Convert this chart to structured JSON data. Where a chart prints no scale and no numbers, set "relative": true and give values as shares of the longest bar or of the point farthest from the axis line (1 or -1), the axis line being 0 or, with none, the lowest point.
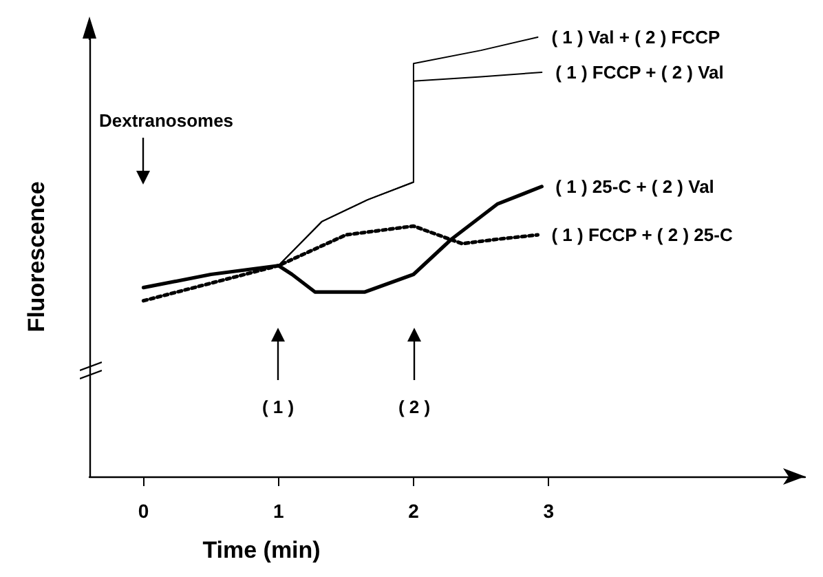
{
  "chart_data": {
    "type": "line",
    "relative": true,
    "xlabel": "Time (min)",
    "ylabel": "Fluorescence",
    "xlim": [
      -0.4,
      4.9
    ],
    "xticks": [
      0,
      1,
      2,
      3
    ],
    "grid": false,
    "legend": false,
    "marker": "none",
    "series": [
      {
        "name": "( 1 ) Val + ( 2 ) FCCP",
        "color": "#000000",
        "x": [
          0,
          0.5,
          1,
          1.32,
          1.66,
          2,
          2,
          2.5,
          2.92
        ],
        "values": [
          0.43,
          0.46,
          0.48,
          0.58,
          0.63,
          0.67,
          0.94,
          0.97,
          1.0
        ]
      },
      {
        "name": "( 1 ) FCCP + ( 2 ) Val",
        "color": "#000000",
        "x": [
          0,
          0.5,
          1,
          1.32,
          1.66,
          2,
          2,
          2.5,
          2.95
        ],
        "values": [
          0.43,
          0.46,
          0.48,
          0.58,
          0.63,
          0.67,
          0.9,
          0.91,
          0.92
        ]
      },
      {
        "name": "( 1 ) 25-C + ( 2 ) Val",
        "color": "#000000",
        "x": [
          0,
          0.5,
          1,
          1.1,
          1.27,
          1.64,
          2,
          2.28,
          2.62,
          2.95
        ],
        "values": [
          0.43,
          0.46,
          0.48,
          0.46,
          0.42,
          0.42,
          0.46,
          0.54,
          0.62,
          0.66
        ]
      },
      {
        "name": "( 1 ) FCCP + ( 2 ) 25-C",
        "color": "#000000",
        "line_style": "dotted",
        "x": [
          0,
          0.5,
          1,
          1.5,
          2,
          2.36,
          2.62,
          2.92
        ],
        "values": [
          0.4,
          0.44,
          0.48,
          0.55,
          0.57,
          0.53,
          0.54,
          0.55
        ]
      }
    ],
    "annotations": [
      "Dextranosomes",
      "( 1 )",
      "( 2 )"
    ]
  }
}
